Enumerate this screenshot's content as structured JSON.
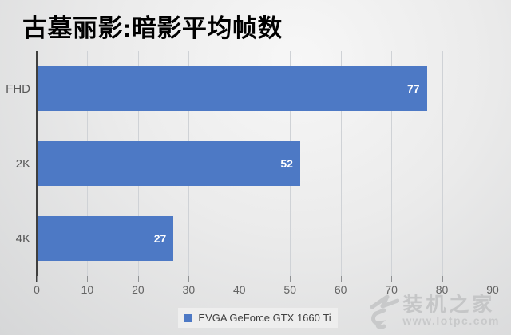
{
  "chart_data": {
    "type": "bar",
    "orientation": "horizontal",
    "title": "古墓丽影:暗影平均帧数",
    "categories": [
      "FHD",
      "2K",
      "4K"
    ],
    "series": [
      {
        "name": "EVGA GeForce GTX 1660 Ti",
        "values": [
          77,
          52,
          27
        ]
      }
    ],
    "xlabel": "",
    "ylabel": "",
    "xlim": [
      0,
      90
    ],
    "xticks": [
      0,
      10,
      20,
      30,
      40,
      50,
      60,
      70,
      80,
      90
    ],
    "grid": true,
    "legend_position": "bottom",
    "bar_color": "#4d79c5",
    "value_label_color": "#ffffff",
    "value_label_position": "inside-end"
  },
  "legend": {
    "items": [
      {
        "label": "EVGA GeForce GTX 1660 Ti",
        "swatch_color": "#4d79c5"
      }
    ]
  },
  "watermark": {
    "site_name": "装机之家",
    "url": "www.lotpc.com"
  }
}
